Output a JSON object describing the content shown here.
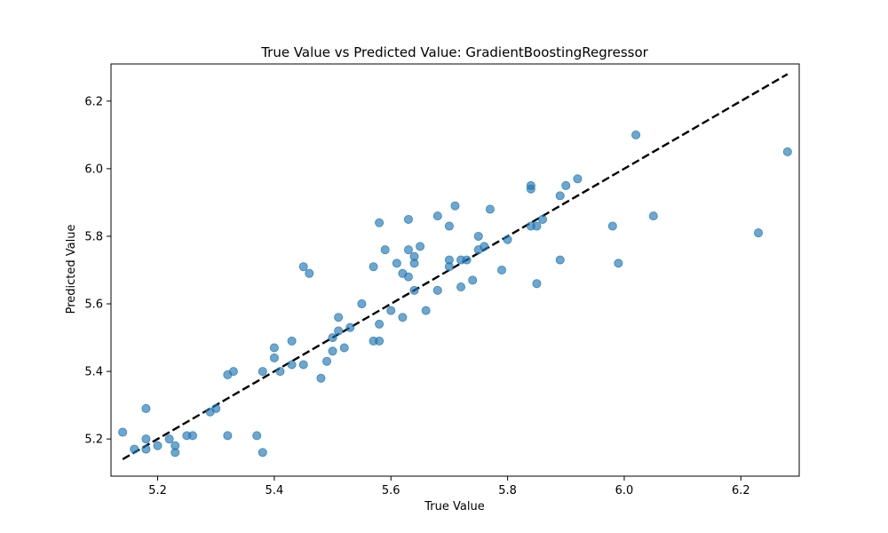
{
  "chart_data": {
    "type": "scatter",
    "title": "True Value vs Predicted Value: GradientBoostingRegressor",
    "xlabel": "True Value",
    "ylabel": "Predicted Value",
    "xlim": [
      5.12,
      6.3
    ],
    "ylim": [
      5.09,
      6.31
    ],
    "xticks": [
      5.2,
      5.4,
      5.6,
      5.8,
      6.0,
      6.2
    ],
    "yticks": [
      5.2,
      5.4,
      5.6,
      5.8,
      6.0,
      6.2
    ],
    "xtick_labels": [
      "5.2",
      "5.4",
      "5.6",
      "5.8",
      "6.0",
      "6.2"
    ],
    "ytick_labels": [
      "5.2",
      "5.4",
      "5.6",
      "5.8",
      "6.0",
      "6.2"
    ],
    "grid": false,
    "point_color": "#1f77b4",
    "reference_line": {
      "style": "dashed",
      "color": "#000000",
      "from": [
        5.14,
        5.14
      ],
      "to": [
        6.28,
        6.28
      ]
    },
    "points": [
      [
        5.14,
        5.22
      ],
      [
        5.16,
        5.17
      ],
      [
        5.18,
        5.2
      ],
      [
        5.18,
        5.17
      ],
      [
        5.18,
        5.29
      ],
      [
        5.2,
        5.18
      ],
      [
        5.22,
        5.2
      ],
      [
        5.23,
        5.18
      ],
      [
        5.23,
        5.16
      ],
      [
        5.25,
        5.21
      ],
      [
        5.26,
        5.21
      ],
      [
        5.29,
        5.28
      ],
      [
        5.3,
        5.29
      ],
      [
        5.32,
        5.21
      ],
      [
        5.32,
        5.39
      ],
      [
        5.33,
        5.4
      ],
      [
        5.37,
        5.21
      ],
      [
        5.38,
        5.16
      ],
      [
        5.38,
        5.4
      ],
      [
        5.4,
        5.47
      ],
      [
        5.4,
        5.44
      ],
      [
        5.41,
        5.4
      ],
      [
        5.43,
        5.42
      ],
      [
        5.43,
        5.49
      ],
      [
        5.45,
        5.42
      ],
      [
        5.45,
        5.71
      ],
      [
        5.46,
        5.69
      ],
      [
        5.48,
        5.38
      ],
      [
        5.49,
        5.43
      ],
      [
        5.5,
        5.5
      ],
      [
        5.5,
        5.46
      ],
      [
        5.51,
        5.56
      ],
      [
        5.51,
        5.52
      ],
      [
        5.52,
        5.47
      ],
      [
        5.53,
        5.53
      ],
      [
        5.55,
        5.6
      ],
      [
        5.57,
        5.49
      ],
      [
        5.57,
        5.71
      ],
      [
        5.58,
        5.54
      ],
      [
        5.58,
        5.84
      ],
      [
        5.58,
        5.49
      ],
      [
        5.59,
        5.76
      ],
      [
        5.6,
        5.58
      ],
      [
        5.61,
        5.72
      ],
      [
        5.62,
        5.69
      ],
      [
        5.62,
        5.56
      ],
      [
        5.63,
        5.68
      ],
      [
        5.63,
        5.76
      ],
      [
        5.63,
        5.85
      ],
      [
        5.64,
        5.74
      ],
      [
        5.64,
        5.72
      ],
      [
        5.64,
        5.64
      ],
      [
        5.65,
        5.77
      ],
      [
        5.66,
        5.58
      ],
      [
        5.68,
        5.64
      ],
      [
        5.68,
        5.86
      ],
      [
        5.7,
        5.83
      ],
      [
        5.7,
        5.73
      ],
      [
        5.7,
        5.71
      ],
      [
        5.71,
        5.89
      ],
      [
        5.72,
        5.73
      ],
      [
        5.72,
        5.65
      ],
      [
        5.73,
        5.73
      ],
      [
        5.74,
        5.67
      ],
      [
        5.75,
        5.8
      ],
      [
        5.75,
        5.76
      ],
      [
        5.76,
        5.77
      ],
      [
        5.77,
        5.88
      ],
      [
        5.79,
        5.7
      ],
      [
        5.8,
        5.79
      ],
      [
        5.84,
        5.94
      ],
      [
        5.84,
        5.95
      ],
      [
        5.84,
        5.83
      ],
      [
        5.85,
        5.83
      ],
      [
        5.85,
        5.66
      ],
      [
        5.86,
        5.85
      ],
      [
        5.89,
        5.92
      ],
      [
        5.89,
        5.73
      ],
      [
        5.9,
        5.95
      ],
      [
        5.92,
        5.97
      ],
      [
        5.98,
        5.83
      ],
      [
        5.99,
        5.72
      ],
      [
        6.02,
        6.1
      ],
      [
        6.05,
        5.86
      ],
      [
        6.23,
        5.81
      ],
      [
        6.28,
        6.05
      ]
    ]
  }
}
